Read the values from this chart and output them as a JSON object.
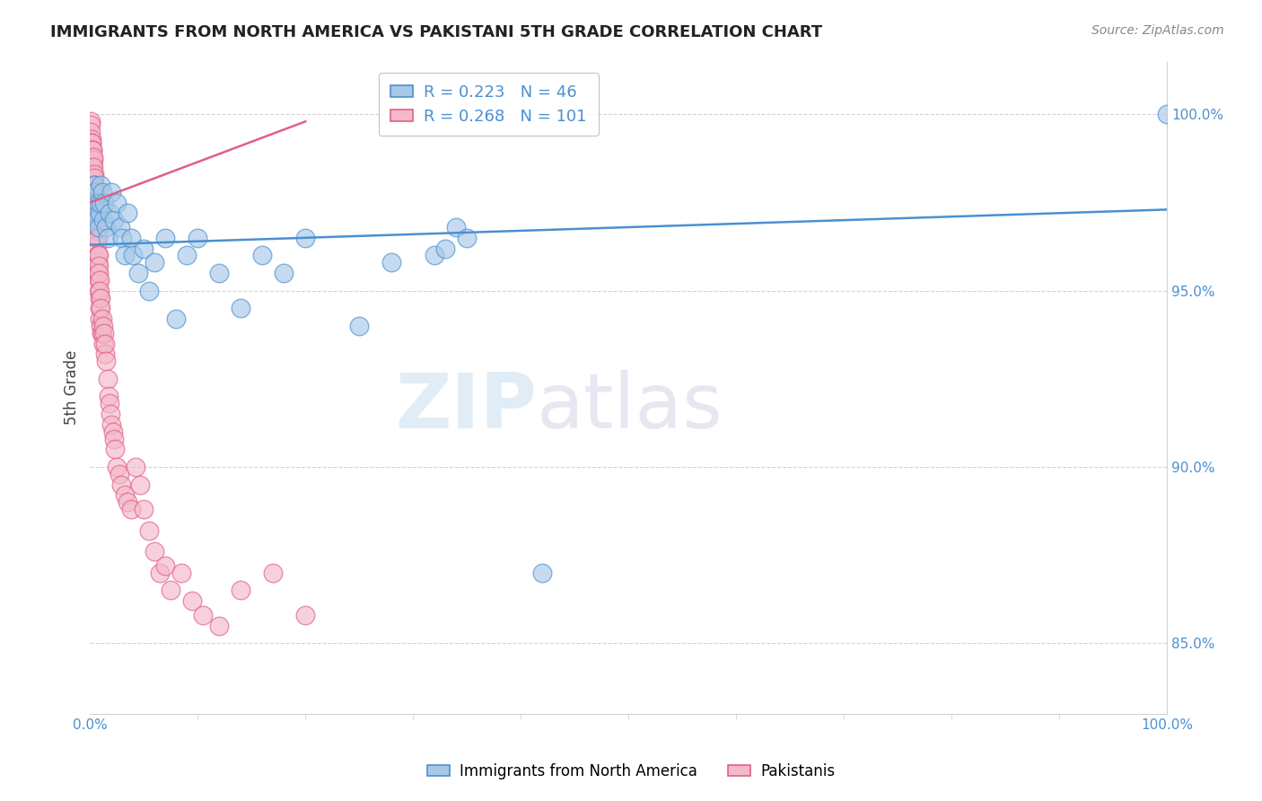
{
  "title": "IMMIGRANTS FROM NORTH AMERICA VS PAKISTANI 5TH GRADE CORRELATION CHART",
  "source": "Source: ZipAtlas.com",
  "ylabel": "5th Grade",
  "xlim": [
    0.0,
    100.0
  ],
  "ylim": [
    0.83,
    1.015
  ],
  "yticks": [
    0.85,
    0.9,
    0.95,
    1.0
  ],
  "ytick_labels": [
    "85.0%",
    "90.0%",
    "95.0%",
    "100.0%"
  ],
  "xtick_labels": [
    "0.0%",
    "100.0%"
  ],
  "blue_R": 0.223,
  "blue_N": 46,
  "pink_R": 0.268,
  "pink_N": 101,
  "blue_color": "#a8c8e8",
  "pink_color": "#f4b8cb",
  "blue_line_color": "#4a90d0",
  "pink_line_color": "#e06080",
  "legend_blue_label": "Immigrants from North America",
  "legend_pink_label": "Pakistanis",
  "watermark_zip": "ZIP",
  "watermark_atlas": "atlas",
  "blue_x": [
    0.3,
    0.4,
    0.5,
    0.5,
    0.6,
    0.7,
    0.8,
    0.9,
    1.0,
    1.0,
    1.1,
    1.2,
    1.3,
    1.5,
    1.6,
    1.8,
    2.0,
    2.2,
    2.5,
    2.8,
    3.0,
    3.2,
    3.5,
    3.8,
    4.0,
    4.5,
    5.0,
    5.5,
    6.0,
    7.0,
    8.0,
    9.0,
    10.0,
    12.0,
    14.0,
    16.0,
    18.0,
    20.0,
    25.0,
    28.0,
    32.0,
    33.0,
    34.0,
    35.0,
    42.0,
    100.0
  ],
  "blue_y": [
    0.975,
    0.98,
    0.978,
    0.972,
    0.97,
    0.975,
    0.968,
    0.972,
    0.98,
    0.975,
    0.978,
    0.97,
    0.975,
    0.968,
    0.965,
    0.972,
    0.978,
    0.97,
    0.975,
    0.968,
    0.965,
    0.96,
    0.972,
    0.965,
    0.96,
    0.955,
    0.962,
    0.95,
    0.958,
    0.965,
    0.942,
    0.96,
    0.965,
    0.955,
    0.945,
    0.96,
    0.955,
    0.965,
    0.94,
    0.958,
    0.96,
    0.962,
    0.968,
    0.965,
    0.87,
    1.0
  ],
  "pink_x": [
    0.05,
    0.07,
    0.08,
    0.1,
    0.12,
    0.13,
    0.15,
    0.15,
    0.17,
    0.18,
    0.2,
    0.2,
    0.22,
    0.23,
    0.25,
    0.25,
    0.27,
    0.28,
    0.3,
    0.3,
    0.32,
    0.33,
    0.35,
    0.35,
    0.37,
    0.38,
    0.4,
    0.4,
    0.42,
    0.43,
    0.45,
    0.45,
    0.47,
    0.48,
    0.5,
    0.5,
    0.52,
    0.55,
    0.57,
    0.58,
    0.6,
    0.62,
    0.63,
    0.65,
    0.67,
    0.68,
    0.7,
    0.72,
    0.73,
    0.75,
    0.77,
    0.78,
    0.8,
    0.82,
    0.83,
    0.85,
    0.87,
    0.88,
    0.9,
    0.92,
    0.95,
    0.97,
    1.0,
    1.05,
    1.1,
    1.15,
    1.2,
    1.25,
    1.3,
    1.35,
    1.4,
    1.5,
    1.6,
    1.7,
    1.8,
    1.9,
    2.0,
    2.1,
    2.2,
    2.3,
    2.5,
    2.7,
    2.9,
    3.2,
    3.5,
    3.8,
    4.2,
    4.6,
    5.0,
    5.5,
    6.0,
    6.5,
    7.0,
    7.5,
    8.5,
    9.5,
    10.5,
    12.0,
    14.0,
    17.0,
    20.0
  ],
  "pink_y": [
    0.998,
    0.997,
    0.995,
    0.993,
    0.992,
    0.99,
    0.992,
    0.988,
    0.99,
    0.987,
    0.99,
    0.985,
    0.988,
    0.985,
    0.99,
    0.983,
    0.987,
    0.983,
    0.988,
    0.982,
    0.985,
    0.98,
    0.983,
    0.978,
    0.982,
    0.977,
    0.98,
    0.975,
    0.978,
    0.973,
    0.978,
    0.972,
    0.977,
    0.97,
    0.975,
    0.97,
    0.973,
    0.97,
    0.972,
    0.968,
    0.972,
    0.967,
    0.965,
    0.968,
    0.963,
    0.96,
    0.965,
    0.958,
    0.96,
    0.955,
    0.96,
    0.953,
    0.957,
    0.95,
    0.955,
    0.948,
    0.953,
    0.945,
    0.95,
    0.942,
    0.948,
    0.94,
    0.945,
    0.938,
    0.942,
    0.938,
    0.94,
    0.935,
    0.938,
    0.932,
    0.935,
    0.93,
    0.925,
    0.92,
    0.918,
    0.915,
    0.912,
    0.91,
    0.908,
    0.905,
    0.9,
    0.898,
    0.895,
    0.892,
    0.89,
    0.888,
    0.9,
    0.895,
    0.888,
    0.882,
    0.876,
    0.87,
    0.872,
    0.865,
    0.87,
    0.862,
    0.858,
    0.855,
    0.865,
    0.87,
    0.858
  ],
  "blue_trendline_x": [
    0.0,
    100.0
  ],
  "blue_trendline_y": [
    0.963,
    0.973
  ],
  "pink_trendline_x": [
    0.0,
    20.0
  ],
  "pink_trendline_y": [
    0.975,
    0.998
  ]
}
